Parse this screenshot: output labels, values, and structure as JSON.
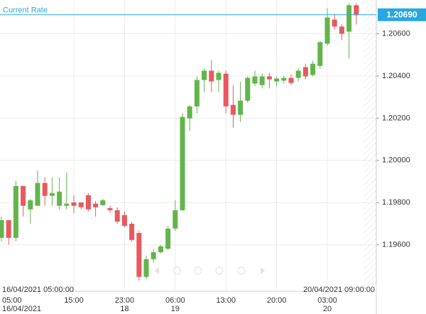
{
  "chart_data": {
    "type": "candlestick",
    "current_rate_label": "Current Rate",
    "current_rate": {
      "value": 1.2069,
      "label": "1.20690"
    },
    "range_labels": [
      "16/04/2021 05:00:00",
      "20/04/2021 09:00:00"
    ],
    "categories": [
      "05:00",
      null,
      null,
      null,
      null,
      null,
      null,
      null,
      null,
      null,
      "15:00",
      null,
      null,
      null,
      null,
      null,
      null,
      "23:00",
      null,
      null,
      null,
      null,
      null,
      null,
      "06:00",
      null,
      null,
      null,
      null,
      null,
      null,
      "13:00",
      null,
      null,
      null,
      null,
      null,
      null,
      "20:00",
      null,
      null,
      null,
      null,
      null,
      null,
      "03:00",
      null,
      null,
      null,
      null
    ],
    "date_labels": [
      "16/04/2021",
      null,
      null,
      null,
      null,
      null,
      null,
      null,
      null,
      null,
      null,
      null,
      null,
      null,
      null,
      null,
      null,
      "18",
      null,
      null,
      null,
      null,
      null,
      null,
      "19",
      null,
      null,
      null,
      null,
      null,
      null,
      null,
      null,
      null,
      null,
      null,
      null,
      null,
      null,
      null,
      null,
      null,
      null,
      null,
      null,
      "20",
      null,
      null,
      null,
      null
    ],
    "open": [
      1.19633,
      1.19717,
      1.19633,
      1.19879,
      1.19768,
      1.19785,
      1.19893,
      1.19832,
      1.19785,
      1.19785,
      1.19801,
      1.19801,
      1.19835,
      1.19795,
      1.19788,
      1.19774,
      1.19764,
      1.19741,
      1.197,
      1.19656,
      1.19448,
      1.19532,
      1.19565,
      1.19582,
      1.19677,
      1.19764,
      1.20199,
      1.20256,
      1.20381,
      1.20425,
      1.20381,
      1.20411,
      1.20263,
      1.20216,
      1.20283,
      1.20364,
      1.20357,
      1.20398,
      1.20374,
      1.20378,
      1.20391,
      1.20391,
      1.20442,
      1.20405,
      1.20448,
      1.20553,
      1.20667,
      1.20634,
      1.2061,
      1.20735
    ],
    "high": [
      1.19734,
      1.19717,
      1.19903,
      1.19879,
      1.19818,
      1.19953,
      1.1992,
      1.1992,
      1.1992,
      1.19943,
      1.19835,
      1.19801,
      1.19845,
      1.19808,
      1.19818,
      1.19785,
      1.19778,
      1.19758,
      1.1971,
      1.19667,
      1.19549,
      1.19582,
      1.196,
      1.1969,
      1.19811,
      1.20223,
      1.20263,
      1.20398,
      1.20435,
      1.20475,
      1.20425,
      1.20425,
      1.20357,
      1.20374,
      1.20398,
      1.20425,
      1.20411,
      1.20415,
      1.20398,
      1.20401,
      1.20408,
      1.20438,
      1.20458,
      1.20472,
      1.20566,
      1.20721,
      1.20694,
      1.20644,
      1.20745,
      1.20745
    ],
    "low": [
      1.19616,
      1.196,
      1.19616,
      1.19734,
      1.197,
      1.19785,
      1.19785,
      1.19785,
      1.19768,
      1.19768,
      1.19751,
      1.19768,
      1.19758,
      1.19734,
      1.19785,
      1.19751,
      1.197,
      1.19683,
      1.19616,
      1.19431,
      1.19437,
      1.19515,
      1.19559,
      1.19576,
      1.19667,
      1.19761,
      1.20138,
      1.20223,
      1.20324,
      1.20324,
      1.20324,
      1.20223,
      1.20155,
      1.20182,
      1.20273,
      1.20351,
      1.20341,
      1.20341,
      1.20351,
      1.20364,
      1.20357,
      1.20374,
      1.20384,
      1.20398,
      1.20435,
      1.20543,
      1.2062,
      1.2057,
      1.20482,
      1.20644
    ],
    "close": [
      1.19717,
      1.19633,
      1.19879,
      1.19785,
      1.19811,
      1.19893,
      1.19832,
      1.19845,
      1.19852,
      1.19795,
      1.19785,
      1.19778,
      1.19768,
      1.19778,
      1.19811,
      1.19764,
      1.1971,
      1.1969,
      1.19623,
      1.19448,
      1.19532,
      1.19565,
      1.19593,
      1.19677,
      1.19764,
      1.20206,
      1.20256,
      1.20381,
      1.20425,
      1.20374,
      1.20415,
      1.20256,
      1.20216,
      1.20283,
      1.20391,
      1.20398,
      1.20398,
      1.20384,
      1.20388,
      1.20391,
      1.20367,
      1.20425,
      1.20398,
      1.20458,
      1.2056,
      1.20677,
      1.20634,
      1.206,
      1.20735,
      1.20688
    ],
    "up_color": "#62b54a",
    "down_color": "#e8595e",
    "rate_color": "#29a8e0",
    "ylim": [
      1.1938,
      1.2076
    ],
    "yticks": [
      {
        "value": 1.206,
        "label": "1.20600"
      },
      {
        "value": 1.204,
        "label": "1.20400"
      },
      {
        "value": 1.202,
        "label": "1.20200"
      },
      {
        "value": 1.2,
        "label": "1.20000"
      },
      {
        "value": 1.198,
        "label": "1.19800"
      },
      {
        "value": 1.196,
        "label": "1.19600"
      }
    ],
    "grid": true
  }
}
